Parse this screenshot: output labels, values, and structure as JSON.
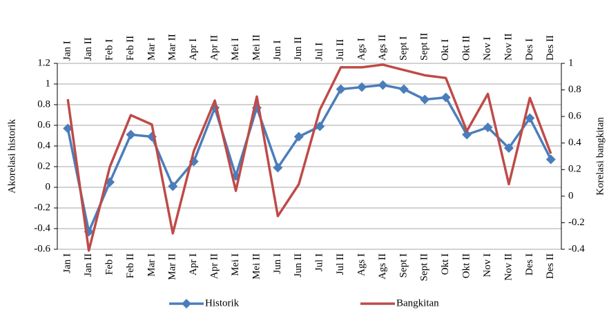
{
  "chart_data": {
    "type": "line",
    "categories": [
      "Jan I",
      "Jan II",
      "Feb I",
      "Feb II",
      "Mar I",
      "Mar II",
      "Apr I",
      "Apr II",
      "Mei I",
      "Mei II",
      "Jun I",
      "Jun II",
      "Jul I",
      "Jul II",
      "Ags I",
      "Ags II",
      "Sept I",
      "Sept II",
      "Okt I",
      "Okt II",
      "Nov I",
      "Nov II",
      "Des I",
      "Des II"
    ],
    "series": [
      {
        "name": "Historik",
        "color": "#4a7ebb",
        "axis": "y",
        "values": [
          0.57,
          -0.43,
          0.05,
          0.51,
          0.49,
          0.01,
          0.25,
          0.77,
          0.11,
          0.77,
          0.19,
          0.49,
          0.59,
          0.95,
          0.97,
          0.99,
          0.95,
          0.85,
          0.87,
          0.51,
          0.58,
          0.38,
          0.67,
          0.27
        ]
      },
      {
        "name": "Bangkitan",
        "color": "#be4b48",
        "axis": "y2",
        "values": [
          0.73,
          -0.41,
          0.22,
          0.61,
          0.54,
          -0.28,
          0.34,
          0.72,
          0.04,
          0.75,
          -0.15,
          0.09,
          0.65,
          0.97,
          0.97,
          0.99,
          0.95,
          0.91,
          0.89,
          0.49,
          0.77,
          0.09,
          0.74,
          0.32
        ]
      }
    ],
    "ylabel": "Akorelasi historik",
    "y2label": "Korelasi bangkitan",
    "ylim": [
      -0.6,
      1.2
    ],
    "yticks": [
      -0.6,
      -0.4,
      -0.2,
      0,
      0.2,
      0.4,
      0.6,
      0.8,
      1,
      1.2
    ],
    "y2lim": [
      -0.4,
      1
    ],
    "y2ticks": [
      -0.4,
      -0.2,
      0,
      0.2,
      0.4,
      0.6,
      0.8,
      1
    ],
    "grid": true,
    "legend": "bottom"
  }
}
